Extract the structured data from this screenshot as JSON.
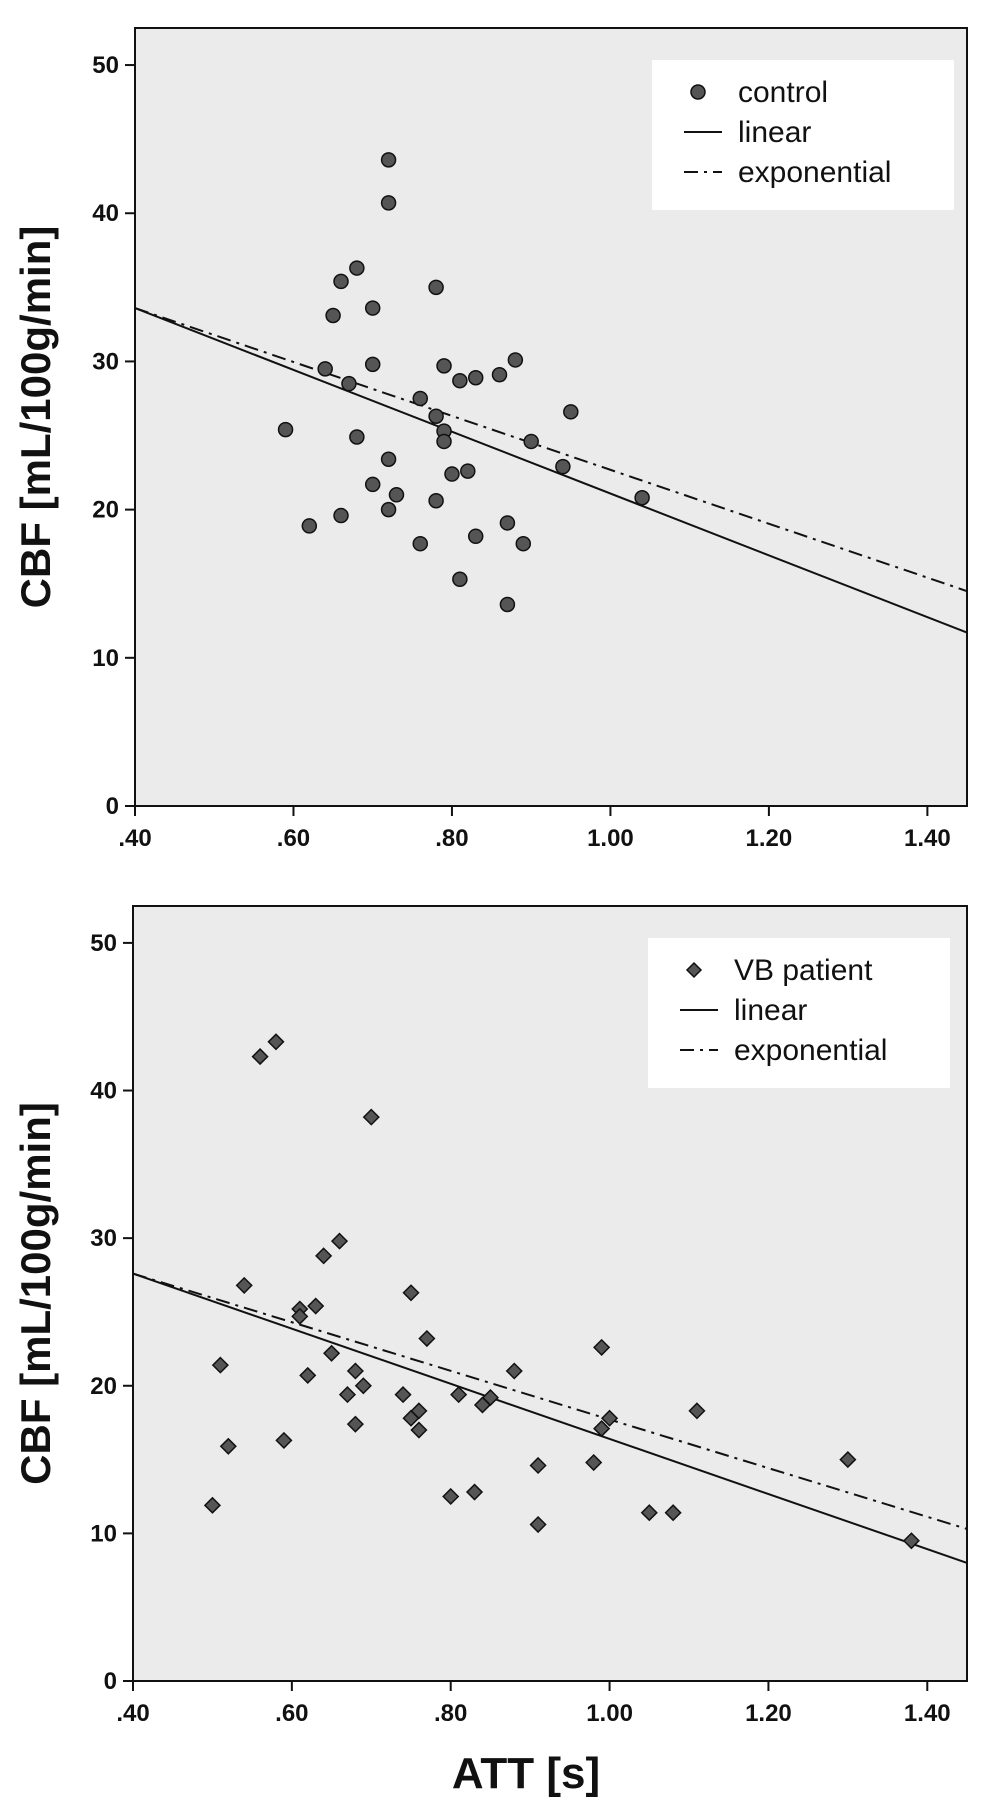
{
  "chart_data": [
    {
      "type": "scatter",
      "xlabel": "",
      "ylabel": "CBF [mL/100g/min]",
      "xlim": [
        0.4,
        1.45
      ],
      "ylim": [
        0,
        52.5
      ],
      "x_ticks": [
        0.4,
        0.6,
        0.8,
        1.0,
        1.2,
        1.4
      ],
      "x_tick_labels": [
        ".40",
        ".60",
        ".80",
        "1.00",
        "1.20",
        "1.40"
      ],
      "y_ticks": [
        0,
        10,
        20,
        30,
        40,
        50
      ],
      "y_tick_labels": [
        "0",
        "10",
        "20",
        "30",
        "40",
        "50"
      ],
      "grid": false,
      "legend_position": "top-right",
      "legend": [
        {
          "label": "control",
          "style": "circle"
        },
        {
          "label": "linear",
          "style": "solid"
        },
        {
          "label": "exponential",
          "style": "dash-dot"
        }
      ],
      "series": [
        {
          "name": "control",
          "marker": "circle",
          "points": [
            [
              0.59,
              25.4
            ],
            [
              0.62,
              18.9
            ],
            [
              0.64,
              29.5
            ],
            [
              0.65,
              33.1
            ],
            [
              0.66,
              35.4
            ],
            [
              0.66,
              19.6
            ],
            [
              0.67,
              28.5
            ],
            [
              0.68,
              36.3
            ],
            [
              0.68,
              24.9
            ],
            [
              0.7,
              33.6
            ],
            [
              0.7,
              29.8
            ],
            [
              0.7,
              21.7
            ],
            [
              0.72,
              43.6
            ],
            [
              0.72,
              40.7
            ],
            [
              0.72,
              23.4
            ],
            [
              0.72,
              20.0
            ],
            [
              0.73,
              21.0
            ],
            [
              0.76,
              27.5
            ],
            [
              0.76,
              17.7
            ],
            [
              0.78,
              35.0
            ],
            [
              0.78,
              26.3
            ],
            [
              0.78,
              20.6
            ],
            [
              0.79,
              29.7
            ],
            [
              0.79,
              25.3
            ],
            [
              0.79,
              24.6
            ],
            [
              0.8,
              22.4
            ],
            [
              0.81,
              28.7
            ],
            [
              0.81,
              15.3
            ],
            [
              0.82,
              22.6
            ],
            [
              0.83,
              28.9
            ],
            [
              0.83,
              18.2
            ],
            [
              0.86,
              29.1
            ],
            [
              0.87,
              19.1
            ],
            [
              0.87,
              13.6
            ],
            [
              0.88,
              30.1
            ],
            [
              0.89,
              17.7
            ],
            [
              0.9,
              24.6
            ],
            [
              0.94,
              22.9
            ],
            [
              0.95,
              26.6
            ],
            [
              1.04,
              20.8
            ]
          ]
        },
        {
          "name": "linear",
          "line": "solid",
          "x": [
            0.4,
            1.45
          ],
          "y": [
            33.6,
            11.7
          ]
        },
        {
          "name": "exponential",
          "line": "dash-dot",
          "x": [
            0.4,
            1.45
          ],
          "y": [
            33.6,
            14.5
          ]
        }
      ]
    },
    {
      "type": "scatter",
      "xlabel": "ATT [s]",
      "ylabel": "CBF [mL/100g/min]",
      "xlim": [
        0.4,
        1.45
      ],
      "ylim": [
        0,
        52.5
      ],
      "x_ticks": [
        0.4,
        0.6,
        0.8,
        1.0,
        1.2,
        1.4
      ],
      "x_tick_labels": [
        ".40",
        ".60",
        ".80",
        "1.00",
        "1.20",
        "1.40"
      ],
      "y_ticks": [
        0,
        10,
        20,
        30,
        40,
        50
      ],
      "y_tick_labels": [
        "0",
        "10",
        "20",
        "30",
        "40",
        "50"
      ],
      "grid": false,
      "legend_position": "top-right",
      "legend": [
        {
          "label": "VB patient",
          "style": "diamond"
        },
        {
          "label": "linear",
          "style": "solid"
        },
        {
          "label": "exponential",
          "style": "dash-dot"
        }
      ],
      "series": [
        {
          "name": "VB patient",
          "marker": "diamond",
          "points": [
            [
              0.5,
              11.9
            ],
            [
              0.51,
              21.4
            ],
            [
              0.52,
              15.9
            ],
            [
              0.54,
              26.8
            ],
            [
              0.56,
              42.3
            ],
            [
              0.58,
              43.3
            ],
            [
              0.59,
              16.3
            ],
            [
              0.61,
              25.2
            ],
            [
              0.61,
              24.7
            ],
            [
              0.62,
              20.7
            ],
            [
              0.63,
              25.4
            ],
            [
              0.64,
              28.8
            ],
            [
              0.65,
              22.2
            ],
            [
              0.66,
              29.8
            ],
            [
              0.67,
              19.4
            ],
            [
              0.68,
              21.0
            ],
            [
              0.68,
              17.4
            ],
            [
              0.69,
              20.0
            ],
            [
              0.7,
              38.2
            ],
            [
              0.74,
              19.4
            ],
            [
              0.75,
              26.3
            ],
            [
              0.75,
              17.8
            ],
            [
              0.76,
              18.3
            ],
            [
              0.76,
              17.0
            ],
            [
              0.77,
              23.2
            ],
            [
              0.8,
              12.5
            ],
            [
              0.81,
              19.4
            ],
            [
              0.83,
              12.8
            ],
            [
              0.84,
              18.7
            ],
            [
              0.85,
              19.2
            ],
            [
              0.88,
              21.0
            ],
            [
              0.91,
              14.6
            ],
            [
              0.91,
              10.6
            ],
            [
              0.98,
              14.8
            ],
            [
              0.99,
              22.6
            ],
            [
              0.99,
              17.1
            ],
            [
              1.0,
              17.8
            ],
            [
              1.05,
              11.4
            ],
            [
              1.08,
              11.4
            ],
            [
              1.11,
              18.3
            ],
            [
              1.3,
              15.0
            ],
            [
              1.38,
              9.5
            ]
          ]
        },
        {
          "name": "linear",
          "line": "solid",
          "x": [
            0.4,
            1.45
          ],
          "y": [
            27.6,
            8.0
          ]
        },
        {
          "name": "exponential",
          "line": "dash-dot",
          "x": [
            0.4,
            1.45
          ],
          "y": [
            27.6,
            10.3
          ]
        }
      ]
    }
  ]
}
